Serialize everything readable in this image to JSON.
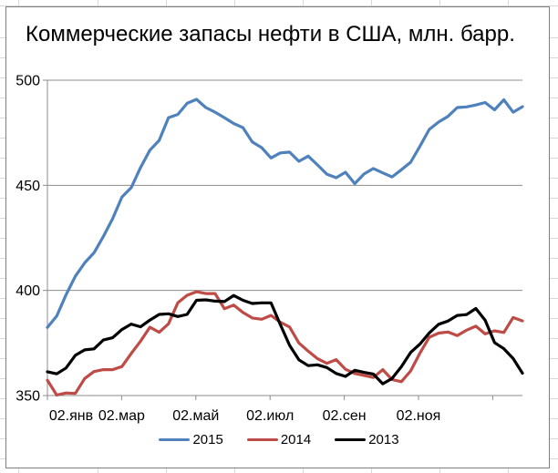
{
  "window": {
    "kind": "excel-embedded-chart"
  },
  "title": "Коммерческие запасы нефти в США, млн. барр.",
  "colors": {
    "series_2015": "#4f81bd",
    "series_2014": "#bf4b47",
    "series_2013": "#000000",
    "gridline": "#8c8c8c",
    "axis": "#8c8c8c",
    "frame_border": "#7f7f7f",
    "sheet_gridline": "#d9d9d9",
    "background": "#ffffff",
    "text": "#000000"
  },
  "chart_data": {
    "type": "line",
    "title": "Коммерческие запасы нефти в США, млн. барр.",
    "xlabel": "",
    "ylabel": "",
    "x_unit": "weekly observations, one calendar year (Jan 2 – Dec 25)",
    "x_tick_labels": [
      "02.янв",
      "02.мар",
      "02.май",
      "02.июл",
      "02.сен",
      "02.ноя"
    ],
    "y_ticks": [
      350,
      400,
      450,
      500
    ],
    "ylim": [
      350,
      500
    ],
    "grid": "horizontal",
    "legend_position": "bottom",
    "series": [
      {
        "name": "2015",
        "color": "#4f81bd",
        "values": [
          382.4,
          387.8,
          397.9,
          406.7,
          413.1,
          417.9,
          425.6,
          434.1,
          444.4,
          448.9,
          458.5,
          466.7,
          471.4,
          482.2,
          483.7,
          489.0,
          490.9,
          487.0,
          484.8,
          482.2,
          479.4,
          477.4,
          470.6,
          467.9,
          463.0,
          465.4,
          465.8,
          461.4,
          463.9,
          459.7,
          455.3,
          453.6,
          456.2,
          450.8,
          455.4,
          458.0,
          455.9,
          454.0,
          457.4,
          461.0,
          468.6,
          476.6,
          480.1,
          482.8,
          487.0,
          487.3,
          488.2,
          489.4,
          485.9,
          490.7,
          484.8,
          487.4
        ]
      },
      {
        "name": "2014",
        "color": "#bf4b47",
        "values": [
          357.3,
          350.2,
          351.2,
          351.0,
          358.1,
          361.4,
          362.3,
          362.3,
          363.8,
          370.0,
          375.9,
          382.5,
          380.1,
          384.1,
          394.1,
          397.7,
          399.4,
          398.5,
          398.5,
          391.3,
          393.0,
          389.5,
          386.9,
          386.3,
          388.1,
          384.9,
          382.6,
          375.0,
          371.1,
          367.5,
          365.3,
          367.1,
          362.5,
          360.5,
          359.6,
          358.6,
          362.3,
          357.6,
          356.6,
          361.7,
          370.2,
          377.7,
          379.7,
          380.2,
          378.5,
          381.1,
          383.0,
          379.3,
          380.8,
          380.0,
          387.1,
          385.5
        ]
      },
      {
        "name": "2013",
        "color": "#000000",
        "values": [
          361.3,
          360.3,
          363.1,
          369.1,
          371.7,
          372.2,
          376.4,
          377.5,
          381.4,
          384.0,
          382.7,
          385.9,
          388.6,
          388.9,
          387.6,
          388.6,
          395.3,
          395.5,
          394.9,
          394.7,
          397.6,
          395.3,
          393.8,
          394.1,
          394.1,
          383.8,
          373.9,
          367.0,
          364.2,
          364.6,
          363.3,
          360.5,
          359.1,
          362.0,
          361.0,
          360.2,
          355.6,
          358.1,
          363.7,
          370.5,
          374.5,
          379.8,
          383.9,
          385.4,
          388.1,
          388.5,
          391.4,
          385.8,
          375.2,
          372.3,
          367.6,
          360.6
        ]
      }
    ]
  }
}
